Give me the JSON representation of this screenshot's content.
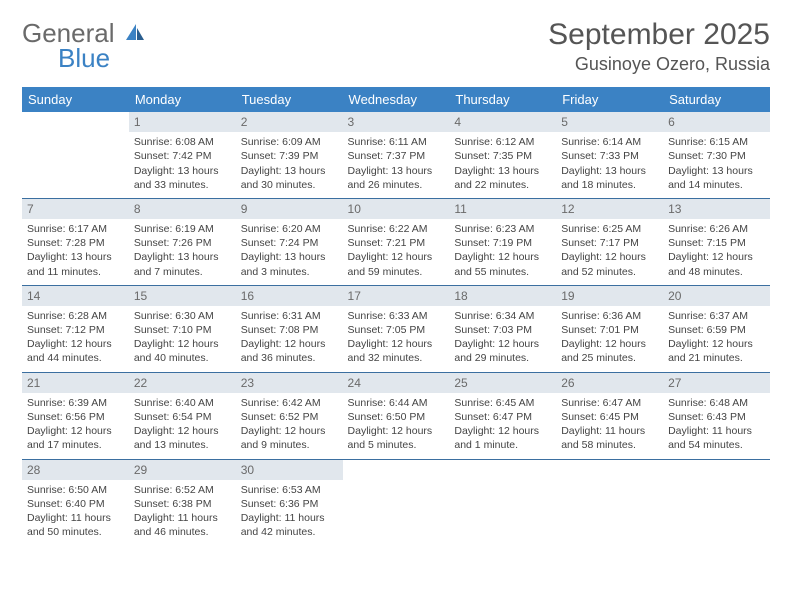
{
  "logo": {
    "text1": "General",
    "text2": "Blue"
  },
  "title": "September 2025",
  "location": "Gusinoye Ozero, Russia",
  "colors": {
    "header_bg": "#3b82c4",
    "header_fg": "#ffffff",
    "daynum_bg": "#e1e7ed",
    "daynum_fg": "#6a6a6a",
    "row_border": "#3b6fa0",
    "text": "#444444"
  },
  "day_headers": [
    "Sunday",
    "Monday",
    "Tuesday",
    "Wednesday",
    "Thursday",
    "Friday",
    "Saturday"
  ],
  "weeks": [
    [
      {
        "empty": true
      },
      {
        "n": "1",
        "sr": "6:08 AM",
        "ss": "7:42 PM",
        "dl": "13 hours and 33 minutes."
      },
      {
        "n": "2",
        "sr": "6:09 AM",
        "ss": "7:39 PM",
        "dl": "13 hours and 30 minutes."
      },
      {
        "n": "3",
        "sr": "6:11 AM",
        "ss": "7:37 PM",
        "dl": "13 hours and 26 minutes."
      },
      {
        "n": "4",
        "sr": "6:12 AM",
        "ss": "7:35 PM",
        "dl": "13 hours and 22 minutes."
      },
      {
        "n": "5",
        "sr": "6:14 AM",
        "ss": "7:33 PM",
        "dl": "13 hours and 18 minutes."
      },
      {
        "n": "6",
        "sr": "6:15 AM",
        "ss": "7:30 PM",
        "dl": "13 hours and 14 minutes."
      }
    ],
    [
      {
        "n": "7",
        "sr": "6:17 AM",
        "ss": "7:28 PM",
        "dl": "13 hours and 11 minutes."
      },
      {
        "n": "8",
        "sr": "6:19 AM",
        "ss": "7:26 PM",
        "dl": "13 hours and 7 minutes."
      },
      {
        "n": "9",
        "sr": "6:20 AM",
        "ss": "7:24 PM",
        "dl": "13 hours and 3 minutes."
      },
      {
        "n": "10",
        "sr": "6:22 AM",
        "ss": "7:21 PM",
        "dl": "12 hours and 59 minutes."
      },
      {
        "n": "11",
        "sr": "6:23 AM",
        "ss": "7:19 PM",
        "dl": "12 hours and 55 minutes."
      },
      {
        "n": "12",
        "sr": "6:25 AM",
        "ss": "7:17 PM",
        "dl": "12 hours and 52 minutes."
      },
      {
        "n": "13",
        "sr": "6:26 AM",
        "ss": "7:15 PM",
        "dl": "12 hours and 48 minutes."
      }
    ],
    [
      {
        "n": "14",
        "sr": "6:28 AM",
        "ss": "7:12 PM",
        "dl": "12 hours and 44 minutes."
      },
      {
        "n": "15",
        "sr": "6:30 AM",
        "ss": "7:10 PM",
        "dl": "12 hours and 40 minutes."
      },
      {
        "n": "16",
        "sr": "6:31 AM",
        "ss": "7:08 PM",
        "dl": "12 hours and 36 minutes."
      },
      {
        "n": "17",
        "sr": "6:33 AM",
        "ss": "7:05 PM",
        "dl": "12 hours and 32 minutes."
      },
      {
        "n": "18",
        "sr": "6:34 AM",
        "ss": "7:03 PM",
        "dl": "12 hours and 29 minutes."
      },
      {
        "n": "19",
        "sr": "6:36 AM",
        "ss": "7:01 PM",
        "dl": "12 hours and 25 minutes."
      },
      {
        "n": "20",
        "sr": "6:37 AM",
        "ss": "6:59 PM",
        "dl": "12 hours and 21 minutes."
      }
    ],
    [
      {
        "n": "21",
        "sr": "6:39 AM",
        "ss": "6:56 PM",
        "dl": "12 hours and 17 minutes."
      },
      {
        "n": "22",
        "sr": "6:40 AM",
        "ss": "6:54 PM",
        "dl": "12 hours and 13 minutes."
      },
      {
        "n": "23",
        "sr": "6:42 AM",
        "ss": "6:52 PM",
        "dl": "12 hours and 9 minutes."
      },
      {
        "n": "24",
        "sr": "6:44 AM",
        "ss": "6:50 PM",
        "dl": "12 hours and 5 minutes."
      },
      {
        "n": "25",
        "sr": "6:45 AM",
        "ss": "6:47 PM",
        "dl": "12 hours and 1 minute."
      },
      {
        "n": "26",
        "sr": "6:47 AM",
        "ss": "6:45 PM",
        "dl": "11 hours and 58 minutes."
      },
      {
        "n": "27",
        "sr": "6:48 AM",
        "ss": "6:43 PM",
        "dl": "11 hours and 54 minutes."
      }
    ],
    [
      {
        "n": "28",
        "sr": "6:50 AM",
        "ss": "6:40 PM",
        "dl": "11 hours and 50 minutes."
      },
      {
        "n": "29",
        "sr": "6:52 AM",
        "ss": "6:38 PM",
        "dl": "11 hours and 46 minutes."
      },
      {
        "n": "30",
        "sr": "6:53 AM",
        "ss": "6:36 PM",
        "dl": "11 hours and 42 minutes."
      },
      {
        "empty": true
      },
      {
        "empty": true
      },
      {
        "empty": true
      },
      {
        "empty": true
      }
    ]
  ],
  "labels": {
    "sunrise": "Sunrise: ",
    "sunset": "Sunset: ",
    "daylight": "Daylight: "
  }
}
